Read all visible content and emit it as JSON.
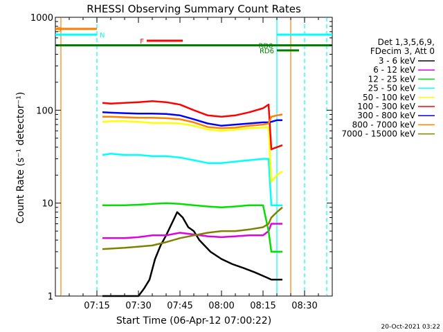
{
  "chart_data": {
    "type": "line",
    "title": "RHESSI Observing Summary Count Rates",
    "xlabel": "Start Time (06-Apr-12 07:00:22)",
    "ylabel": "Count Rate (s⁻¹ detector⁻¹)",
    "y_scale": "log",
    "ylim": [
      1,
      1000
    ],
    "y_ticks": [
      {
        "value": 1,
        "label": "1"
      },
      {
        "value": 10,
        "label": "10"
      },
      {
        "value": 100,
        "label": "100"
      },
      {
        "value": 1000,
        "label": "1000"
      }
    ],
    "xlim_minutes": [
      0,
      100
    ],
    "x_ticks": [
      {
        "minutes": 15,
        "label": "07:15"
      },
      {
        "minutes": 30,
        "label": "07:30"
      },
      {
        "minutes": 45,
        "label": "07:45"
      },
      {
        "minutes": 60,
        "label": "08:00"
      },
      {
        "minutes": 75,
        "label": "08:15"
      },
      {
        "minutes": 90,
        "label": "08:30"
      }
    ],
    "legend_header": [
      "Det 1,3,5,6,9,",
      "FDecim 3, Att 0"
    ],
    "legend_position": "right",
    "timestamp": "20-Oct-2021 03:22",
    "series": [
      {
        "name": "3 - 6 keV",
        "color": "#000000",
        "x": [
          17,
          30,
          32,
          34,
          36,
          38,
          40,
          42,
          44,
          46,
          48,
          50,
          52,
          56,
          60,
          64,
          68,
          72,
          76,
          78,
          80,
          82
        ],
        "y": [
          1,
          1,
          1.2,
          1.5,
          2.5,
          3.5,
          4.5,
          6,
          8,
          7,
          5.5,
          5,
          4,
          3,
          2.5,
          2.2,
          2,
          1.8,
          1.6,
          1.5,
          1.5,
          1.5
        ]
      },
      {
        "name": "6 - 12 keV",
        "color": "#e000e0",
        "x": [
          17,
          25,
          30,
          35,
          40,
          45,
          50,
          55,
          60,
          65,
          70,
          75,
          77,
          78,
          82
        ],
        "y": [
          4.2,
          4.2,
          4.3,
          4.5,
          4.5,
          4.8,
          4.6,
          4.4,
          4.3,
          4.4,
          4.5,
          4.5,
          5,
          6,
          6
        ]
      },
      {
        "name": "12 - 25 keV",
        "color": "#00e000",
        "x": [
          17,
          25,
          30,
          35,
          40,
          45,
          50,
          55,
          60,
          65,
          70,
          75,
          77,
          78,
          80,
          82
        ],
        "y": [
          9.5,
          9.5,
          9.6,
          9.8,
          10,
          9.8,
          9.5,
          9.2,
          9,
          9.2,
          9.5,
          9.5,
          5,
          3,
          3,
          3
        ]
      },
      {
        "name": "25 - 50 keV",
        "color": "#00ffff",
        "x": [
          17,
          20,
          25,
          30,
          35,
          40,
          45,
          50,
          55,
          60,
          65,
          70,
          75,
          77,
          78,
          80,
          82
        ],
        "y": [
          33,
          34,
          33,
          33,
          32,
          32,
          31,
          29,
          27,
          27,
          28,
          29,
          30,
          30,
          9.5,
          9.5,
          9.5
        ]
      },
      {
        "name": "50 - 100 keV",
        "color": "#ffff00",
        "x": [
          17,
          20,
          25,
          30,
          35,
          40,
          45,
          50,
          55,
          60,
          65,
          70,
          75,
          77,
          78,
          80,
          82
        ],
        "y": [
          75,
          76,
          76,
          75,
          73,
          73,
          72,
          68,
          62,
          60,
          62,
          64,
          65,
          66,
          17,
          20,
          22
        ]
      },
      {
        "name": "100 - 300 keV",
        "color": "#ff0000",
        "x": [
          17,
          20,
          25,
          30,
          35,
          40,
          45,
          50,
          55,
          60,
          65,
          70,
          75,
          77,
          78,
          80,
          82
        ],
        "y": [
          120,
          118,
          120,
          122,
          125,
          122,
          115,
          100,
          88,
          85,
          88,
          95,
          105,
          115,
          38,
          40,
          42
        ]
      },
      {
        "name": "300 - 800 keV",
        "color": "#0000ff",
        "x": [
          17,
          20,
          25,
          30,
          35,
          40,
          45,
          50,
          55,
          60,
          65,
          70,
          75,
          77,
          78,
          80,
          82
        ],
        "y": [
          95,
          94,
          93,
          92,
          92,
          91,
          88,
          80,
          72,
          68,
          70,
          72,
          74,
          74,
          75,
          78,
          78
        ]
      },
      {
        "name": "800 - 7000 keV",
        "color": "#ff8000",
        "x": [
          17,
          20,
          25,
          30,
          35,
          40,
          45,
          50,
          55,
          60,
          65,
          70,
          75,
          77,
          78,
          80,
          82
        ],
        "y": [
          85,
          85,
          84,
          83,
          83,
          82,
          80,
          74,
          66,
          64,
          65,
          68,
          70,
          72,
          85,
          88,
          90
        ]
      },
      {
        "name": "7000 - 15000 keV",
        "color": "#808000",
        "x": [
          17,
          25,
          30,
          35,
          40,
          45,
          50,
          55,
          60,
          65,
          70,
          75,
          77,
          78,
          80,
          82
        ],
        "y": [
          3.2,
          3.3,
          3.4,
          3.5,
          3.8,
          4.2,
          4.5,
          4.8,
          5,
          5,
          5.2,
          5.5,
          6,
          7,
          8,
          9
        ]
      }
    ],
    "annotations": [
      {
        "label": "S",
        "color": "#ff8000",
        "y": 750,
        "x_start": 0,
        "x_end": 15
      },
      {
        "label": "N",
        "color": "#00ffff",
        "y": 650,
        "x_start": 0,
        "x_end": 15,
        "x_start_2": 80,
        "x_end_2": 100
      },
      {
        "label": "F",
        "color": "#ff0000",
        "y": 560,
        "x_start": 33,
        "x_end": 46
      },
      {
        "label": "RD0",
        "color": "#008000",
        "y": 500,
        "x_start": 0,
        "x_end": 100
      },
      {
        "label": "RD6",
        "color": "#008000",
        "y": 440,
        "x_start": 80,
        "x_end": 88
      }
    ],
    "vertical_markers": [
      {
        "minutes": 2,
        "color": "#ff8000",
        "style": "solid"
      },
      {
        "minutes": 15,
        "color": "#00ffff",
        "style": "dashed"
      },
      {
        "minutes": 80,
        "color": "#00ffff",
        "style": "solid"
      },
      {
        "minutes": 85,
        "color": "#ff8000",
        "style": "solid"
      },
      {
        "minutes": 90,
        "color": "#00ffff",
        "style": "dashed"
      },
      {
        "minutes": 98,
        "color": "#00ffff",
        "style": "dashed"
      }
    ],
    "grid": false
  }
}
